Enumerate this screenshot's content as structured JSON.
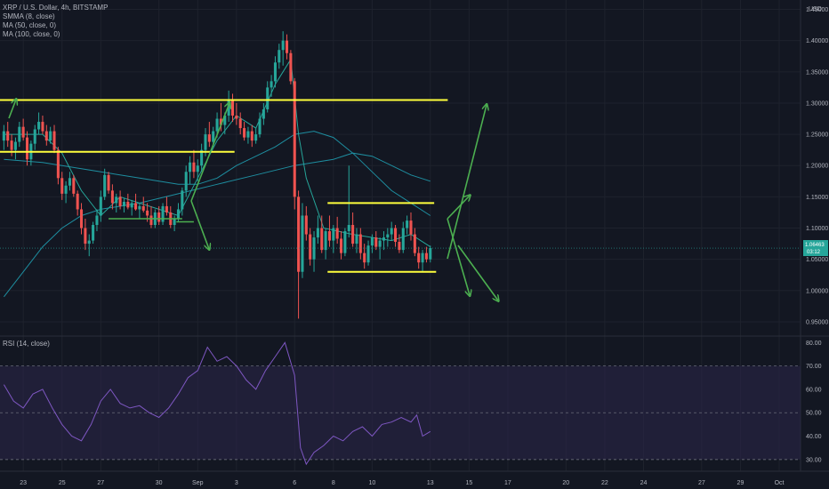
{
  "symbol_title": "XRP / U.S. Dollar, 4h, BITSTAMP",
  "indicators": [
    "SMMA (8, close)",
    "MA (50, close, 0)",
    "MA (100, close, 0)"
  ],
  "currency": "USD",
  "price_badge": {
    "value": "1.06463",
    "countdown": "03:12"
  },
  "rsi_label": "RSI (14, close)",
  "colors": {
    "background": "#131722",
    "up": "#26a69a",
    "down": "#ef5350",
    "smma": "#26a69a",
    "ma": "#1e8ea0",
    "annotation_yellow": "#ffff3c",
    "arrow_green": "#4caf50",
    "rsi_line": "#7e57c2",
    "rsi_band": "#2a2448"
  },
  "chart_data": [
    {
      "type": "candlestick",
      "title": "XRP / U.S. Dollar, 4h, BITSTAMP",
      "ylabel": "USD",
      "ylim": [
        0.93,
        1.465
      ],
      "y_ticks": [
        "1.45000",
        "1.40000",
        "1.35000",
        "1.30000",
        "1.25000",
        "1.20000",
        "1.15000",
        "1.10000",
        "1.05000",
        "1.00000",
        "0.95000"
      ],
      "x_ticks": [
        "23",
        "25",
        "27",
        "30",
        "Sep",
        "3",
        "6",
        "8",
        "10",
        "13",
        "15",
        "17",
        "20",
        "22",
        "24",
        "27",
        "29",
        "Oct"
      ],
      "x_tick_days": [
        -9,
        -7,
        -5,
        -2,
        0,
        2,
        5,
        7,
        9,
        12,
        14,
        16,
        19,
        21,
        23,
        26,
        28,
        30
      ],
      "x_range_days": [
        -10.2,
        31.1
      ],
      "annotations": {
        "horizontal_levels": [
          {
            "price": 1.305,
            "from_day": -10.2,
            "to_day": 12.9
          },
          {
            "price": 1.222,
            "from_day": -10.2,
            "to_day": 1.9
          },
          {
            "price": 1.14,
            "from_day": 6.7,
            "to_day": 12.2
          },
          {
            "price": 1.03,
            "from_day": 6.7,
            "to_day": 12.3
          }
        ],
        "arrows": [
          {
            "from": [
              -4.6,
              1.115
            ],
            "to": [
              -0.8,
              1.115
            ]
          },
          {
            "from": [
              -1.1,
              1.11
            ],
            "to": [
              -0.2,
              1.11
            ]
          }
        ]
      },
      "candles": [
        [
          -10.0,
          1.24,
          1.265,
          1.225,
          1.255
        ],
        [
          -9.8,
          1.255,
          1.27,
          1.23,
          1.24
        ],
        [
          -9.6,
          1.24,
          1.25,
          1.215,
          1.225
        ],
        [
          -9.4,
          1.225,
          1.245,
          1.21,
          1.238
        ],
        [
          -9.2,
          1.238,
          1.27,
          1.23,
          1.262
        ],
        [
          -9.0,
          1.262,
          1.275,
          1.24,
          1.245
        ],
        [
          -8.8,
          1.245,
          1.255,
          1.2,
          1.21
        ],
        [
          -8.6,
          1.21,
          1.24,
          1.2,
          1.235
        ],
        [
          -8.4,
          1.235,
          1.265,
          1.225,
          1.258
        ],
        [
          -8.2,
          1.258,
          1.285,
          1.25,
          1.27
        ],
        [
          -8.0,
          1.27,
          1.28,
          1.25,
          1.255
        ],
        [
          -7.8,
          1.255,
          1.265,
          1.232,
          1.24
        ],
        [
          -7.6,
          1.24,
          1.262,
          1.235,
          1.255
        ],
        [
          -7.4,
          1.255,
          1.265,
          1.22,
          1.225
        ],
        [
          -7.2,
          1.225,
          1.23,
          1.17,
          1.18
        ],
        [
          -7.0,
          1.18,
          1.19,
          1.145,
          1.155
        ],
        [
          -6.8,
          1.155,
          1.175,
          1.14,
          1.168
        ],
        [
          -6.6,
          1.168,
          1.19,
          1.16,
          1.18
        ],
        [
          -6.4,
          1.18,
          1.185,
          1.15,
          1.155
        ],
        [
          -6.2,
          1.155,
          1.16,
          1.12,
          1.13
        ],
        [
          -6.0,
          1.13,
          1.14,
          1.09,
          1.1
        ],
        [
          -5.8,
          1.1,
          1.115,
          1.065,
          1.075
        ],
        [
          -5.6,
          1.075,
          1.09,
          1.055,
          1.08
        ],
        [
          -5.4,
          1.08,
          1.11,
          1.075,
          1.105
        ],
        [
          -5.2,
          1.105,
          1.13,
          1.095,
          1.12
        ],
        [
          -5.0,
          1.12,
          1.16,
          1.11,
          1.15
        ],
        [
          -4.8,
          1.15,
          1.195,
          1.145,
          1.185
        ],
        [
          -4.6,
          1.185,
          1.19,
          1.155,
          1.16
        ],
        [
          -4.4,
          1.16,
          1.17,
          1.13,
          1.14
        ],
        [
          -4.2,
          1.14,
          1.155,
          1.125,
          1.15
        ],
        [
          -4.0,
          1.15,
          1.16,
          1.13,
          1.135
        ],
        [
          -3.8,
          1.135,
          1.148,
          1.125,
          1.142
        ],
        [
          -3.6,
          1.142,
          1.155,
          1.13,
          1.133
        ],
        [
          -3.4,
          1.133,
          1.145,
          1.12,
          1.14
        ],
        [
          -3.2,
          1.14,
          1.155,
          1.128,
          1.13
        ],
        [
          -3.0,
          1.13,
          1.14,
          1.115,
          1.135
        ],
        [
          -2.8,
          1.135,
          1.15,
          1.125,
          1.128
        ],
        [
          -2.6,
          1.128,
          1.14,
          1.11,
          1.12
        ],
        [
          -2.4,
          1.12,
          1.135,
          1.1,
          1.105
        ],
        [
          -2.2,
          1.105,
          1.13,
          1.1,
          1.125
        ],
        [
          -2.0,
          1.125,
          1.135,
          1.105,
          1.11
        ],
        [
          -1.8,
          1.11,
          1.14,
          1.105,
          1.135
        ],
        [
          -1.6,
          1.135,
          1.15,
          1.12,
          1.125
        ],
        [
          -1.4,
          1.125,
          1.135,
          1.1,
          1.105
        ],
        [
          -1.2,
          1.105,
          1.12,
          1.095,
          1.115
        ],
        [
          -1.0,
          1.115,
          1.14,
          1.11,
          1.13
        ],
        [
          -0.8,
          1.13,
          1.165,
          1.12,
          1.16
        ],
        [
          -0.6,
          1.16,
          1.2,
          1.15,
          1.19
        ],
        [
          -0.4,
          1.19,
          1.215,
          1.17,
          1.205
        ],
        [
          -0.2,
          1.205,
          1.225,
          1.18,
          1.19
        ],
        [
          0.0,
          1.19,
          1.21,
          1.175,
          1.2
        ],
        [
          0.2,
          1.2,
          1.235,
          1.19,
          1.225
        ],
        [
          0.4,
          1.225,
          1.26,
          1.215,
          1.25
        ],
        [
          0.6,
          1.25,
          1.27,
          1.23,
          1.238
        ],
        [
          0.8,
          1.238,
          1.262,
          1.23,
          1.255
        ],
        [
          1.0,
          1.255,
          1.285,
          1.245,
          1.275
        ],
        [
          1.2,
          1.275,
          1.3,
          1.255,
          1.265
        ],
        [
          1.4,
          1.265,
          1.285,
          1.25,
          1.28
        ],
        [
          1.6,
          1.28,
          1.32,
          1.27,
          1.305
        ],
        [
          1.8,
          1.305,
          1.315,
          1.27,
          1.28
        ],
        [
          2.0,
          1.28,
          1.3,
          1.265,
          1.275
        ],
        [
          2.2,
          1.275,
          1.285,
          1.25,
          1.26
        ],
        [
          2.4,
          1.26,
          1.27,
          1.24,
          1.245
        ],
        [
          2.6,
          1.245,
          1.262,
          1.235,
          1.255
        ],
        [
          2.8,
          1.255,
          1.265,
          1.23,
          1.24
        ],
        [
          3.0,
          1.24,
          1.26,
          1.235,
          1.25
        ],
        [
          3.2,
          1.25,
          1.285,
          1.245,
          1.275
        ],
        [
          3.4,
          1.275,
          1.3,
          1.265,
          1.29
        ],
        [
          3.6,
          1.29,
          1.335,
          1.285,
          1.325
        ],
        [
          3.8,
          1.325,
          1.345,
          1.31,
          1.335
        ],
        [
          4.0,
          1.335,
          1.375,
          1.325,
          1.365
        ],
        [
          4.2,
          1.365,
          1.395,
          1.355,
          1.385
        ],
        [
          4.4,
          1.385,
          1.415,
          1.36,
          1.4
        ],
        [
          4.6,
          1.4,
          1.41,
          1.37,
          1.38
        ],
        [
          4.8,
          1.38,
          1.385,
          1.33,
          1.335
        ],
        [
          5.0,
          1.335,
          1.34,
          1.13,
          1.15
        ],
        [
          5.2,
          1.15,
          1.16,
          0.955,
          1.03
        ],
        [
          5.4,
          1.03,
          1.14,
          1.02,
          1.12
        ],
        [
          5.6,
          1.12,
          1.135,
          1.08,
          1.09
        ],
        [
          5.8,
          1.09,
          1.1,
          1.04,
          1.05
        ],
        [
          6.0,
          1.05,
          1.095,
          1.03,
          1.085
        ],
        [
          6.2,
          1.085,
          1.12,
          1.075,
          1.1
        ],
        [
          6.4,
          1.1,
          1.12,
          1.06,
          1.065
        ],
        [
          6.6,
          1.065,
          1.1,
          1.05,
          1.095
        ],
        [
          6.8,
          1.095,
          1.12,
          1.07,
          1.08
        ],
        [
          7.0,
          1.08,
          1.105,
          1.06,
          1.1
        ],
        [
          7.2,
          1.1,
          1.118,
          1.075,
          1.083
        ],
        [
          7.4,
          1.083,
          1.095,
          1.05,
          1.06
        ],
        [
          7.6,
          1.06,
          1.1,
          1.055,
          1.095
        ],
        [
          7.8,
          1.095,
          1.2,
          1.085,
          1.105
        ],
        [
          8.0,
          1.105,
          1.125,
          1.07,
          1.075
        ],
        [
          8.2,
          1.075,
          1.1,
          1.06,
          1.09
        ],
        [
          8.4,
          1.09,
          1.1,
          1.05,
          1.06
        ],
        [
          8.6,
          1.06,
          1.075,
          1.035,
          1.045
        ],
        [
          8.8,
          1.045,
          1.08,
          1.04,
          1.072
        ],
        [
          9.0,
          1.072,
          1.09,
          1.06,
          1.085
        ],
        [
          9.2,
          1.085,
          1.095,
          1.065,
          1.07
        ],
        [
          9.4,
          1.07,
          1.085,
          1.05,
          1.08
        ],
        [
          9.6,
          1.08,
          1.095,
          1.065,
          1.085
        ],
        [
          9.8,
          1.085,
          1.1,
          1.07,
          1.09
        ],
        [
          10.0,
          1.09,
          1.11,
          1.08,
          1.1
        ],
        [
          10.2,
          1.1,
          1.105,
          1.07,
          1.078
        ],
        [
          10.4,
          1.078,
          1.09,
          1.06,
          1.065
        ],
        [
          10.6,
          1.065,
          1.11,
          1.06,
          1.1
        ],
        [
          10.8,
          1.1,
          1.12,
          1.09,
          1.112
        ],
        [
          11.0,
          1.112,
          1.125,
          1.08,
          1.09
        ],
        [
          11.2,
          1.09,
          1.1,
          1.055,
          1.06
        ],
        [
          11.4,
          1.06,
          1.07,
          1.035,
          1.045
        ],
        [
          11.6,
          1.045,
          1.065,
          1.03,
          1.06
        ],
        [
          11.8,
          1.06,
          1.07,
          1.045,
          1.05
        ],
        [
          12.0,
          1.05,
          1.072,
          1.045,
          1.068
        ]
      ],
      "smma8": [
        [
          -10,
          1.25
        ],
        [
          -8,
          1.25
        ],
        [
          -7,
          1.22
        ],
        [
          -6,
          1.16
        ],
        [
          -5,
          1.12
        ],
        [
          -4,
          1.15
        ],
        [
          -2,
          1.13
        ],
        [
          -1,
          1.12
        ],
        [
          0,
          1.18
        ],
        [
          1,
          1.24
        ],
        [
          2,
          1.28
        ],
        [
          3,
          1.26
        ],
        [
          4,
          1.33
        ],
        [
          4.8,
          1.37
        ],
        [
          5.2,
          1.25
        ],
        [
          5.6,
          1.18
        ],
        [
          6.5,
          1.1
        ],
        [
          8,
          1.09
        ],
        [
          10,
          1.08
        ],
        [
          11,
          1.09
        ],
        [
          12,
          1.07
        ]
      ],
      "ma50": [
        [
          -10,
          1.21
        ],
        [
          -8,
          1.205
        ],
        [
          -7,
          1.2
        ],
        [
          -6,
          1.195
        ],
        [
          -5,
          1.19
        ],
        [
          -3,
          1.18
        ],
        [
          -1,
          1.17
        ],
        [
          0,
          1.17
        ],
        [
          1,
          1.18
        ],
        [
          2,
          1.2
        ],
        [
          3,
          1.215
        ],
        [
          4,
          1.23
        ],
        [
          5,
          1.25
        ],
        [
          6,
          1.255
        ],
        [
          7,
          1.245
        ],
        [
          8,
          1.22
        ],
        [
          9,
          1.19
        ],
        [
          10,
          1.16
        ],
        [
          11,
          1.14
        ],
        [
          12,
          1.12
        ]
      ],
      "ma100": [
        [
          -10,
          0.99
        ],
        [
          -9,
          1.03
        ],
        [
          -8,
          1.07
        ],
        [
          -7,
          1.1
        ],
        [
          -6,
          1.12
        ],
        [
          -5,
          1.13
        ],
        [
          -3,
          1.14
        ],
        [
          -1,
          1.155
        ],
        [
          1,
          1.17
        ],
        [
          3,
          1.185
        ],
        [
          5,
          1.2
        ],
        [
          6,
          1.205
        ],
        [
          7,
          1.21
        ],
        [
          8,
          1.22
        ],
        [
          9,
          1.215
        ],
        [
          10,
          1.2
        ],
        [
          11,
          1.185
        ],
        [
          12,
          1.175
        ]
      ]
    },
    {
      "type": "line",
      "title": "RSI (14, close)",
      "ylim": [
        25,
        82
      ],
      "y_ticks": [
        "80.00",
        "70.00",
        "60.00",
        "50.00",
        "40.00",
        "30.00"
      ],
      "band": [
        30,
        70
      ],
      "midline": 50,
      "rsi": [
        [
          -10,
          62
        ],
        [
          -9.5,
          55
        ],
        [
          -9,
          52
        ],
        [
          -8.5,
          58
        ],
        [
          -8,
          60
        ],
        [
          -7.5,
          52
        ],
        [
          -7,
          45
        ],
        [
          -6.5,
          40
        ],
        [
          -6,
          38
        ],
        [
          -5.5,
          45
        ],
        [
          -5,
          55
        ],
        [
          -4.5,
          60
        ],
        [
          -4,
          54
        ],
        [
          -3.5,
          52
        ],
        [
          -3,
          53
        ],
        [
          -2.5,
          50
        ],
        [
          -2,
          48
        ],
        [
          -1.5,
          52
        ],
        [
          -1,
          58
        ],
        [
          -0.5,
          65
        ],
        [
          0,
          68
        ],
        [
          0.5,
          78
        ],
        [
          1,
          72
        ],
        [
          1.5,
          74
        ],
        [
          2,
          70
        ],
        [
          2.5,
          64
        ],
        [
          3,
          60
        ],
        [
          3.5,
          68
        ],
        [
          4,
          74
        ],
        [
          4.5,
          80
        ],
        [
          5,
          66
        ],
        [
          5.3,
          35
        ],
        [
          5.6,
          28
        ],
        [
          6,
          33
        ],
        [
          6.5,
          36
        ],
        [
          7,
          40
        ],
        [
          7.5,
          38
        ],
        [
          8,
          42
        ],
        [
          8.5,
          44
        ],
        [
          9,
          40
        ],
        [
          9.5,
          45
        ],
        [
          10,
          46
        ],
        [
          10.5,
          48
        ],
        [
          11,
          46
        ],
        [
          11.3,
          49
        ],
        [
          11.6,
          40
        ],
        [
          12,
          42
        ]
      ]
    }
  ]
}
